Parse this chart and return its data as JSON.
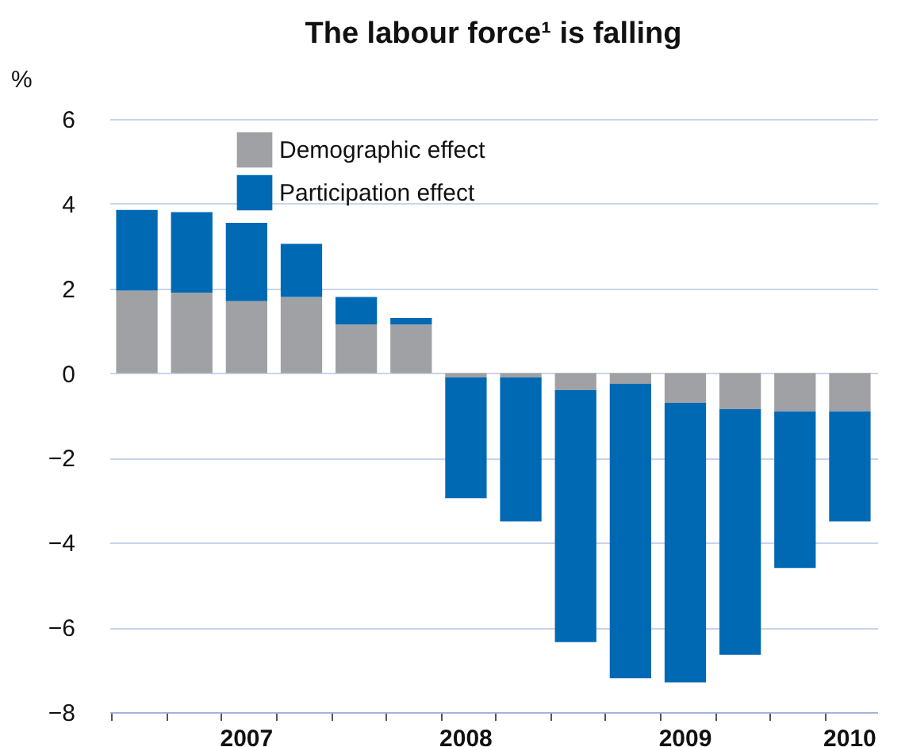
{
  "chart_data": {
    "type": "bar",
    "title": "The labour force¹ is falling",
    "ylabel": "%",
    "categories": [
      null,
      null,
      "2007",
      null,
      null,
      null,
      "2008",
      null,
      null,
      null,
      "2009",
      null,
      null,
      "2010"
    ],
    "series": [
      {
        "name": "Demographic effect",
        "color": "#a0a1a4",
        "values": [
          1.95,
          1.9,
          1.7,
          1.8,
          1.15,
          1.15,
          -0.1,
          -0.1,
          -0.4,
          -0.25,
          -0.7,
          -0.85,
          -0.9,
          -0.9
        ]
      },
      {
        "name": "Participation effect",
        "color": "#0069b4",
        "values": [
          1.9,
          1.9,
          1.85,
          1.25,
          0.65,
          0.15,
          -2.85,
          -3.4,
          -5.95,
          -6.95,
          -6.6,
          -5.8,
          -3.7,
          -2.6
        ]
      }
    ],
    "stacked": true,
    "ylim": [
      -8,
      6
    ],
    "yticks": [
      -8,
      -6,
      -4,
      -2,
      0,
      2,
      4,
      6
    ],
    "grid": "y",
    "legend": "top left"
  }
}
